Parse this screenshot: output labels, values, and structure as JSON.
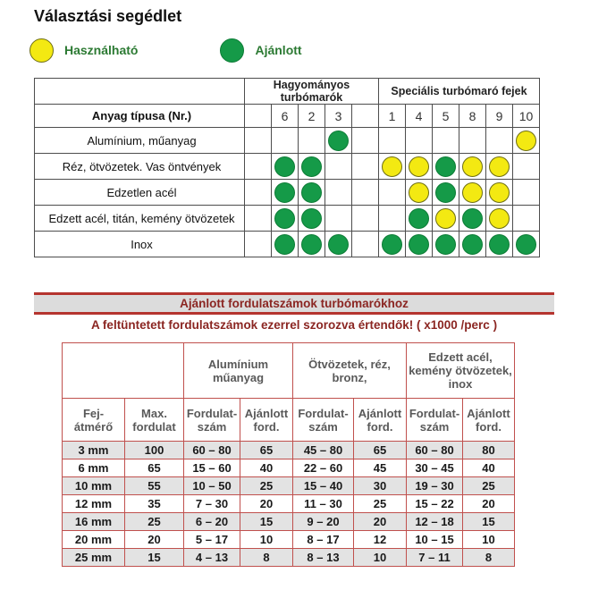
{
  "title": "Választási segédlet",
  "legend": {
    "usable": {
      "label": "Használható",
      "color": "#f3e912"
    },
    "recommended": {
      "label": "Ajánlott",
      "color": "#159a48"
    }
  },
  "selection_table": {
    "group1": "Hagyományos turbómarók",
    "group2": "Speciális turbómaró fejek",
    "row_header": "Anyag típusa (Nr.)",
    "columns": [
      "",
      "6",
      "2",
      "3",
      "",
      "1",
      "4",
      "5",
      "8",
      "9",
      "10"
    ],
    "cell_legend": {
      "green": "Ajánlott",
      "yellow": "Használható"
    },
    "rows": [
      {
        "label": "Alumínium, műanyag",
        "cells": [
          "",
          "",
          "",
          "green",
          "",
          "",
          "",
          "",
          "",
          "",
          "yellow"
        ]
      },
      {
        "label": "Réz, ötvözetek. Vas öntvények",
        "cells": [
          "",
          "green",
          "green",
          "",
          "",
          "yellow",
          "yellow",
          "green",
          "yellow",
          "yellow",
          ""
        ]
      },
      {
        "label": "Edzetlen acél",
        "cells": [
          "",
          "green",
          "green",
          "",
          "",
          "",
          "yellow",
          "green",
          "yellow",
          "yellow",
          ""
        ]
      },
      {
        "label": "Edzett acél, titán, kemény ötvözetek",
        "cells": [
          "",
          "green",
          "green",
          "",
          "",
          "",
          "green",
          "yellow",
          "green",
          "yellow",
          ""
        ]
      },
      {
        "label": "Inox",
        "cells": [
          "",
          "green",
          "green",
          "green",
          "",
          "green",
          "green",
          "green",
          "green",
          "green",
          "green"
        ]
      }
    ]
  },
  "banner": {
    "title": "Ajánlott fordulatszámok turbómarókhoz",
    "subtitle": "A feltüntetett fordulatszámok ezerrel szorozva értendők! ( x1000 /perc )"
  },
  "rpm_table": {
    "groups": [
      "Alumínium műanyag",
      "Ötvözetek, réz, bronz,",
      "Edzett acél, kemény ötvözetek, inox"
    ],
    "columns": [
      "Fej-átmérő",
      "Max. fordulat",
      "Fordulat-szám",
      "Ajánlott ford.",
      "Fordulat-szám",
      "Ajánlott ford.",
      "Fordulat-szám",
      "Ajánlott ford."
    ],
    "rows": [
      [
        "3 mm",
        "100",
        "60 – 80",
        "65",
        "45 – 80",
        "65",
        "60 – 80",
        "80"
      ],
      [
        "6 mm",
        "65",
        "15 – 60",
        "40",
        "22 – 60",
        "45",
        "30 – 45",
        "40"
      ],
      [
        "10 mm",
        "55",
        "10 – 50",
        "25",
        "15 –  40",
        "30",
        "19 – 30",
        "25"
      ],
      [
        "12 mm",
        "35",
        "7 – 30",
        "20",
        "11 – 30",
        "25",
        "15 – 22",
        "20"
      ],
      [
        "16 mm",
        "25",
        "6 – 20",
        "15",
        "9 – 20",
        "20",
        "12 – 18",
        "15"
      ],
      [
        "20 mm",
        "20",
        "5 – 17",
        "10",
        "8 – 17",
        "12",
        "10 – 15",
        "10"
      ],
      [
        "25 mm",
        "15",
        "4 – 13",
        "8",
        "8 – 13",
        "10",
        "7 – 11",
        "8"
      ]
    ]
  }
}
